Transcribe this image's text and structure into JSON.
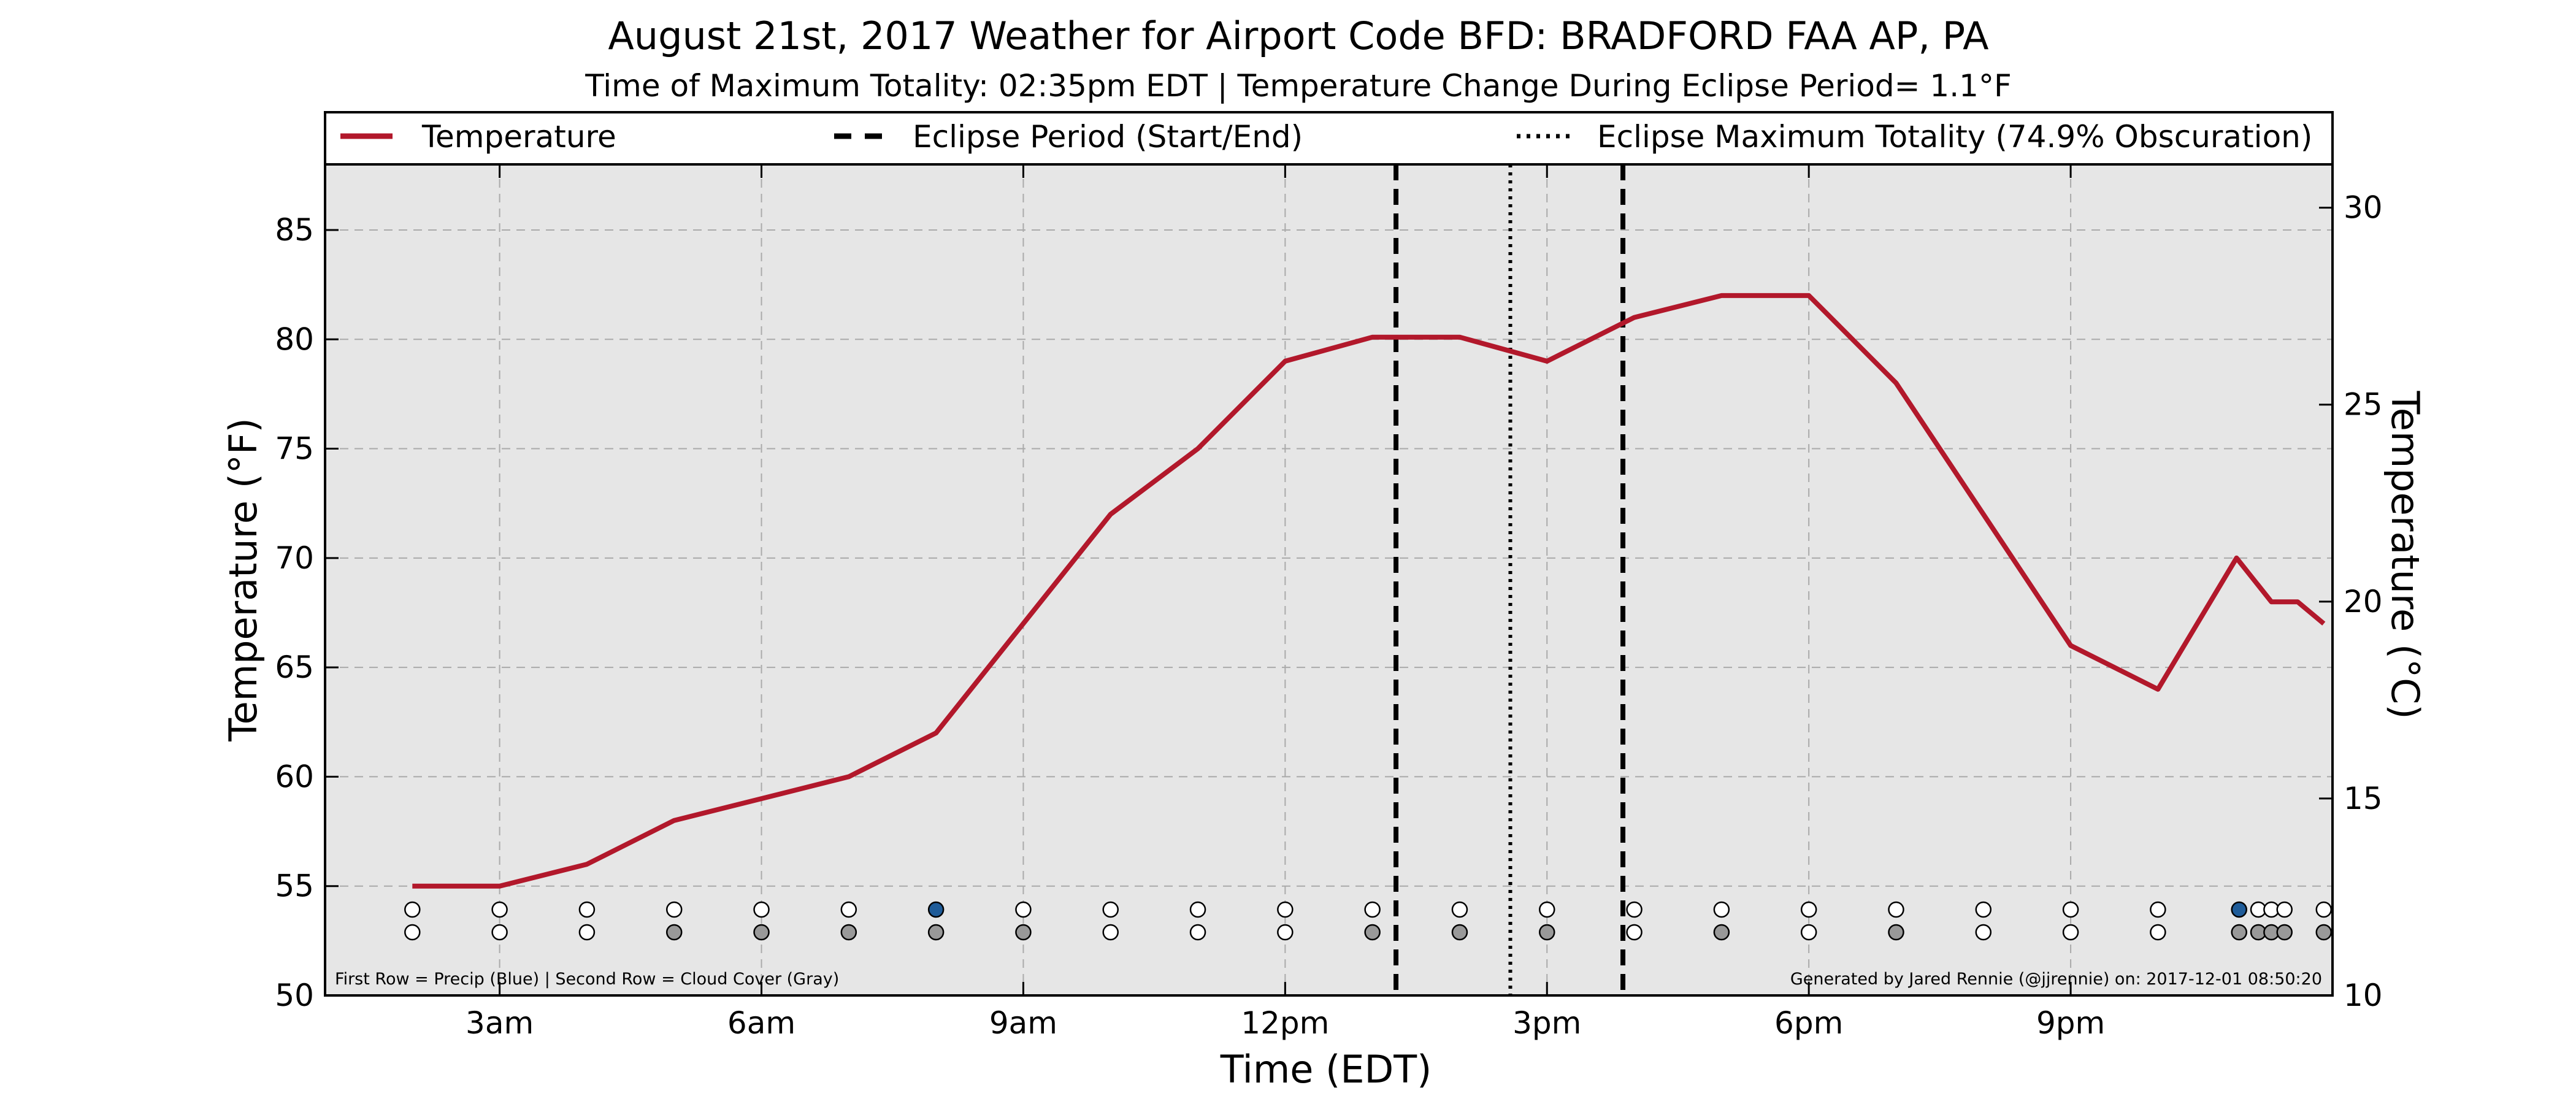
{
  "chart_data": {
    "type": "line",
    "title": "August 21st, 2017 Weather for Airport Code BFD: BRADFORD FAA AP, PA",
    "subtitle": "Time of Maximum Totality: 02:35pm EDT | Temperature Change During Eclipse Period= 1.1°F",
    "xlabel": "Time (EDT)",
    "ylabel": "Temperature (°F)",
    "ylabel_right": "Temperature (°C)",
    "xlim": [
      1.0,
      24.0
    ],
    "ylim": [
      50,
      88
    ],
    "ylim_right": [
      10,
      31.1
    ],
    "x_ticks": [
      {
        "x": 3,
        "label": "3am"
      },
      {
        "x": 6,
        "label": "6am"
      },
      {
        "x": 9,
        "label": "9am"
      },
      {
        "x": 12,
        "label": "12pm"
      },
      {
        "x": 15,
        "label": "3pm"
      },
      {
        "x": 18,
        "label": "6pm"
      },
      {
        "x": 21,
        "label": "9pm"
      }
    ],
    "y_ticks": [
      50,
      55,
      60,
      65,
      70,
      75,
      80,
      85
    ],
    "y_ticks_right": [
      10,
      15,
      20,
      25,
      30
    ],
    "grid": true,
    "legend": {
      "placement": "top",
      "entries": [
        {
          "label": "Temperature",
          "style": "solid"
        },
        {
          "label": "Eclipse Period (Start/End)",
          "style": "dashed"
        },
        {
          "label": "Eclipse Maximum Totality (74.9% Obscuration)",
          "style": "dotted"
        }
      ]
    },
    "series": [
      {
        "name": "Temperature",
        "color": "#b2182b",
        "x": [
          2.0,
          3.0,
          4.0,
          5.0,
          6.0,
          7.0,
          8.0,
          9.0,
          10.0,
          11.0,
          12.0,
          13.0,
          14.0,
          15.0,
          16.0,
          17.0,
          18.0,
          19.0,
          20.0,
          21.0,
          22.0,
          22.9,
          23.3,
          23.6,
          23.9
        ],
        "y": [
          55,
          55,
          56,
          58,
          59,
          60,
          62,
          67,
          72,
          75,
          79,
          80.1,
          80.1,
          79,
          81,
          82,
          82,
          78,
          72,
          66,
          64,
          70,
          68,
          68,
          67
        ]
      }
    ],
    "eclipse_start": 13.27,
    "eclipse_max": 14.58,
    "eclipse_end": 15.87,
    "precip_row": {
      "x": [
        2,
        3,
        4,
        5,
        6,
        7,
        8,
        9,
        10,
        11,
        12,
        13,
        14,
        15,
        16,
        17,
        18,
        19,
        20,
        21,
        22,
        22.93,
        23.15,
        23.3,
        23.45,
        23.9
      ],
      "fill": [
        "#ffffff",
        "#ffffff",
        "#ffffff",
        "#ffffff",
        "#ffffff",
        "#ffffff",
        "#1f5c99",
        "#ffffff",
        "#ffffff",
        "#ffffff",
        "#ffffff",
        "#ffffff",
        "#ffffff",
        "#ffffff",
        "#ffffff",
        "#ffffff",
        "#ffffff",
        "#ffffff",
        "#ffffff",
        "#ffffff",
        "#ffffff",
        "#1f5c99",
        "#ffffff",
        "#ffffff",
        "#ffffff",
        "#ffffff"
      ]
    },
    "cloud_row": {
      "x": [
        2,
        3,
        4,
        5,
        6,
        7,
        8,
        9,
        10,
        11,
        12,
        13,
        14,
        15,
        16,
        17,
        18,
        19,
        20,
        21,
        22,
        22.93,
        23.15,
        23.3,
        23.45,
        23.9
      ],
      "fill": [
        "#ffffff",
        "#ffffff",
        "#ffffff",
        "#999999",
        "#999999",
        "#999999",
        "#999999",
        "#999999",
        "#ffffff",
        "#ffffff",
        "#ffffff",
        "#999999",
        "#999999",
        "#999999",
        "#ffffff",
        "#999999",
        "#ffffff",
        "#999999",
        "#ffffff",
        "#ffffff",
        "#ffffff",
        "#999999",
        "#999999",
        "#999999",
        "#999999",
        "#999999"
      ]
    },
    "footnote_left": "First Row = Precip (Blue) | Second Row = Cloud Cover (Gray)",
    "footnote_right": "Generated by Jared Rennie (@jjrennie) on: 2017-12-01 08:50:20"
  },
  "colors": {
    "plot_background": "#e6e6e6",
    "temperature_line": "#b2182b",
    "grid": "#aaaaaa",
    "precip_marker": "#1f5c99",
    "cloud_marker": "#999999"
  }
}
